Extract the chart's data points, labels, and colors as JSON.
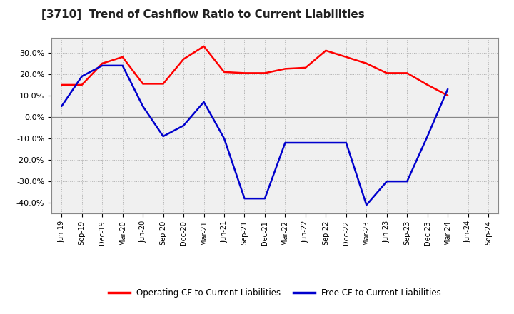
{
  "title": "[3710]  Trend of Cashflow Ratio to Current Liabilities",
  "x_labels": [
    "Jun-19",
    "Sep-19",
    "Dec-19",
    "Mar-20",
    "Jun-20",
    "Sep-20",
    "Dec-20",
    "Mar-21",
    "Jun-21",
    "Sep-21",
    "Dec-21",
    "Mar-22",
    "Jun-22",
    "Sep-22",
    "Dec-22",
    "Mar-23",
    "Jun-23",
    "Sep-23",
    "Dec-23",
    "Mar-24",
    "Jun-24",
    "Sep-24"
  ],
  "op_cf": [
    15.0,
    15.0,
    25.0,
    28.0,
    15.5,
    15.5,
    27.0,
    33.0,
    21.0,
    20.5,
    20.5,
    22.5,
    23.0,
    31.0,
    28.0,
    25.0,
    20.5,
    20.5,
    15.0,
    10.0,
    null,
    null
  ],
  "free_cf": [
    5.0,
    19.0,
    24.0,
    24.0,
    5.0,
    -9.0,
    -4.0,
    7.0,
    -10.0,
    -38.0,
    -38.0,
    -12.0,
    -12.0,
    -12.0,
    -12.0,
    -41.0,
    -30.0,
    -30.0,
    -9.0,
    13.0,
    null,
    null
  ],
  "op_cf_color": "#ff0000",
  "free_cf_color": "#0000cd",
  "ylim_min": -45,
  "ylim_max": 37,
  "yticks": [
    -40,
    -30,
    -20,
    -10,
    0,
    10,
    20,
    30
  ],
  "grid_color": "#b0b0b0",
  "bg_color": "#f0f0f0",
  "legend_op": "Operating CF to Current Liabilities",
  "legend_free": "Free CF to Current Liabilities"
}
